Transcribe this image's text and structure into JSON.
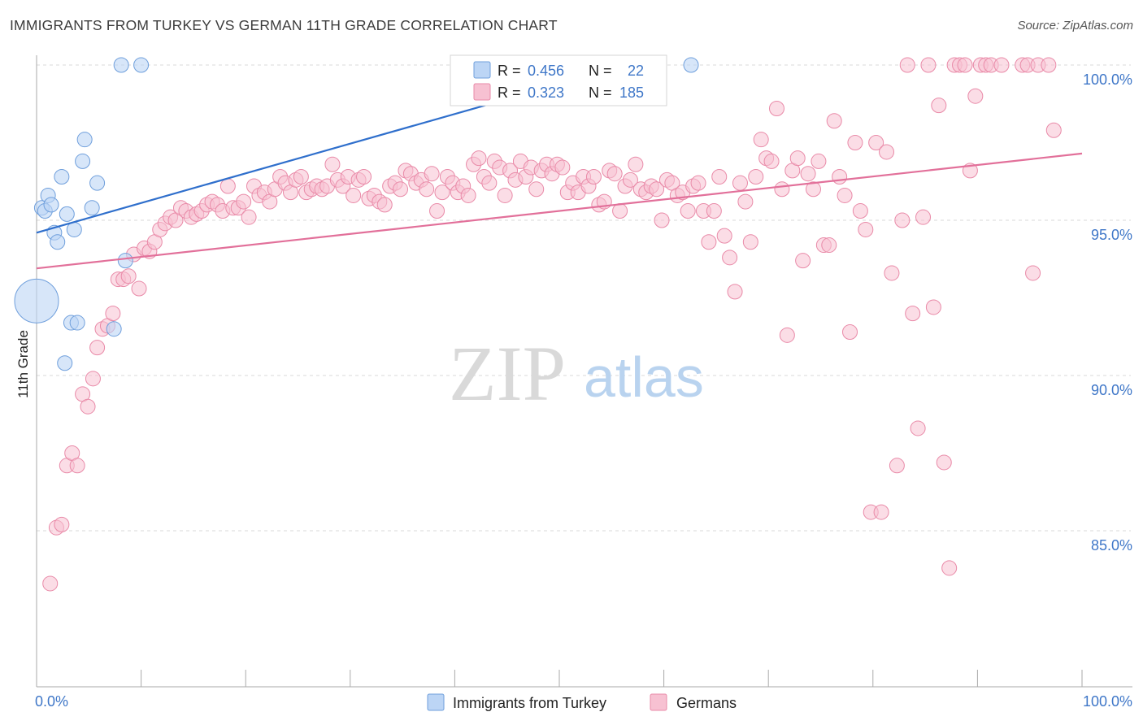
{
  "title": "IMMIGRANTS FROM TURKEY VS GERMAN 11TH GRADE CORRELATION CHART",
  "source": "Source: ZipAtlas.com",
  "watermark": {
    "part1": "ZIP",
    "part2": "atlas"
  },
  "colors": {
    "blue_fill": "#bcd5f5",
    "blue_stroke": "#6f9fdc",
    "blue_line": "#2f6fcc",
    "pink_fill": "#f7c1d2",
    "pink_stroke": "#e98aa8",
    "pink_line": "#e2709a",
    "tick_text": "#3f77c8",
    "grid": "#d8d8d8"
  },
  "stats": [
    {
      "r_label": "R =",
      "r_value": "0.456",
      "n_label": "N =",
      "n_value": "22"
    },
    {
      "r_label": "R =",
      "r_value": "0.323",
      "n_label": "N =",
      "n_value": "185"
    }
  ],
  "chart_data": {
    "type": "scatter",
    "title": "IMMIGRANTS FROM TURKEY VS GERMAN 11TH GRADE CORRELATION CHART",
    "xlabel": "",
    "ylabel": "11th Grade",
    "xlim": [
      0,
      100
    ],
    "ylim": [
      80.5,
      100.8
    ],
    "x_tick_labels": [
      {
        "value": 0,
        "label": "0.0%"
      },
      {
        "value": 100,
        "label": "100.0%"
      }
    ],
    "y_tick_labels": [
      {
        "value": 100,
        "label": "100.0%"
      },
      {
        "value": 95,
        "label": "95.0%"
      },
      {
        "value": 90,
        "label": "90.0%"
      },
      {
        "value": 85,
        "label": "85.0%"
      }
    ],
    "grid": true,
    "legend_position": "bottom",
    "series": [
      {
        "name": "Immigrants from Turkey",
        "color": "blue",
        "trend": {
          "x": [
            0,
            56.5
          ],
          "y": [
            94.6,
            100.0
          ]
        },
        "points": [
          [
            0.0,
            92.4,
            3
          ],
          [
            0.5,
            95.4,
            1
          ],
          [
            0.8,
            95.3,
            1
          ],
          [
            1.1,
            95.8,
            1
          ],
          [
            1.4,
            95.5,
            1
          ],
          [
            1.7,
            94.6,
            1
          ],
          [
            2.0,
            94.3,
            1
          ],
          [
            2.4,
            96.4,
            1
          ],
          [
            2.7,
            90.4,
            1
          ],
          [
            2.9,
            95.2,
            1
          ],
          [
            3.3,
            91.7,
            1
          ],
          [
            3.6,
            94.7,
            1
          ],
          [
            3.9,
            91.7,
            1
          ],
          [
            4.4,
            96.9,
            1
          ],
          [
            4.6,
            97.6,
            1
          ],
          [
            5.3,
            95.4,
            1
          ],
          [
            5.8,
            96.2,
            1
          ],
          [
            7.4,
            91.5,
            1
          ],
          [
            8.1,
            100.0,
            1
          ],
          [
            8.5,
            93.7,
            1
          ],
          [
            10.0,
            100.0,
            1
          ],
          [
            62.6,
            100.0,
            1
          ]
        ]
      },
      {
        "name": "Germans",
        "color": "pink",
        "trend": {
          "x": [
            0,
            100
          ],
          "y": [
            93.45,
            97.15
          ]
        },
        "points": [
          [
            1.3,
            83.3
          ],
          [
            1.9,
            85.1
          ],
          [
            2.4,
            85.2
          ],
          [
            2.9,
            87.1
          ],
          [
            3.4,
            87.5
          ],
          [
            3.9,
            87.1
          ],
          [
            4.4,
            89.4
          ],
          [
            4.9,
            89.0
          ],
          [
            5.4,
            89.9
          ],
          [
            5.8,
            90.9
          ],
          [
            6.3,
            91.5
          ],
          [
            6.8,
            91.6
          ],
          [
            7.3,
            92.0
          ],
          [
            7.8,
            93.1
          ],
          [
            8.3,
            93.1
          ],
          [
            8.8,
            93.2
          ],
          [
            9.3,
            93.9
          ],
          [
            9.8,
            92.8
          ],
          [
            10.3,
            94.1
          ],
          [
            10.8,
            94.0
          ],
          [
            11.3,
            94.3
          ],
          [
            11.8,
            94.7
          ],
          [
            12.3,
            94.9
          ],
          [
            12.8,
            95.1
          ],
          [
            13.3,
            95.0
          ],
          [
            13.8,
            95.4
          ],
          [
            14.3,
            95.3
          ],
          [
            14.8,
            95.1
          ],
          [
            15.3,
            95.2
          ],
          [
            15.8,
            95.3
          ],
          [
            16.3,
            95.5
          ],
          [
            16.8,
            95.6
          ],
          [
            17.3,
            95.5
          ],
          [
            17.8,
            95.3
          ],
          [
            18.3,
            96.1
          ],
          [
            18.8,
            95.4
          ],
          [
            19.3,
            95.4
          ],
          [
            19.8,
            95.6
          ],
          [
            20.3,
            95.1
          ],
          [
            20.8,
            96.1
          ],
          [
            21.3,
            95.8
          ],
          [
            21.8,
            95.9
          ],
          [
            22.3,
            95.6
          ],
          [
            22.8,
            96.0
          ],
          [
            23.3,
            96.4
          ],
          [
            23.8,
            96.2
          ],
          [
            24.3,
            95.9
          ],
          [
            24.8,
            96.3
          ],
          [
            25.3,
            96.4
          ],
          [
            25.8,
            95.9
          ],
          [
            26.3,
            96.0
          ],
          [
            26.8,
            96.1
          ],
          [
            27.3,
            96.0
          ],
          [
            27.8,
            96.1
          ],
          [
            28.3,
            96.8
          ],
          [
            28.8,
            96.3
          ],
          [
            29.3,
            96.1
          ],
          [
            29.8,
            96.4
          ],
          [
            30.3,
            95.8
          ],
          [
            30.8,
            96.3
          ],
          [
            31.3,
            96.4
          ],
          [
            31.8,
            95.7
          ],
          [
            32.3,
            95.8
          ],
          [
            32.8,
            95.6
          ],
          [
            33.3,
            95.5
          ],
          [
            33.8,
            96.1
          ],
          [
            34.3,
            96.2
          ],
          [
            34.8,
            96.0
          ],
          [
            35.3,
            96.6
          ],
          [
            35.8,
            96.5
          ],
          [
            36.3,
            96.2
          ],
          [
            36.8,
            96.3
          ],
          [
            37.3,
            96.0
          ],
          [
            37.8,
            96.5
          ],
          [
            38.3,
            95.3
          ],
          [
            38.8,
            95.9
          ],
          [
            39.3,
            96.4
          ],
          [
            39.8,
            96.2
          ],
          [
            40.3,
            95.9
          ],
          [
            40.8,
            96.1
          ],
          [
            41.3,
            95.8
          ],
          [
            41.8,
            96.8
          ],
          [
            42.3,
            97.0
          ],
          [
            42.8,
            96.4
          ],
          [
            43.3,
            96.2
          ],
          [
            43.8,
            96.9
          ],
          [
            44.3,
            96.7
          ],
          [
            44.8,
            95.8
          ],
          [
            45.3,
            96.6
          ],
          [
            45.8,
            96.3
          ],
          [
            46.3,
            96.9
          ],
          [
            46.8,
            96.4
          ],
          [
            47.3,
            96.7
          ],
          [
            47.8,
            96.0
          ],
          [
            48.3,
            96.6
          ],
          [
            48.8,
            96.8
          ],
          [
            49.3,
            96.5
          ],
          [
            49.8,
            96.8
          ],
          [
            50.3,
            96.7
          ],
          [
            50.8,
            95.9
          ],
          [
            51.3,
            96.2
          ],
          [
            51.8,
            95.9
          ],
          [
            52.3,
            96.4
          ],
          [
            52.8,
            96.1
          ],
          [
            53.3,
            96.4
          ],
          [
            53.8,
            95.5
          ],
          [
            54.3,
            95.6
          ],
          [
            54.8,
            96.6
          ],
          [
            55.3,
            96.5
          ],
          [
            55.8,
            95.3
          ],
          [
            56.3,
            96.1
          ],
          [
            56.8,
            96.3
          ],
          [
            57.3,
            96.8
          ],
          [
            57.8,
            96.0
          ],
          [
            58.3,
            95.9
          ],
          [
            58.8,
            96.1
          ],
          [
            59.3,
            96.0
          ],
          [
            59.8,
            95.0
          ],
          [
            60.3,
            96.3
          ],
          [
            60.8,
            96.2
          ],
          [
            61.3,
            95.8
          ],
          [
            61.8,
            95.9
          ],
          [
            62.3,
            95.3
          ],
          [
            62.8,
            96.1
          ],
          [
            63.3,
            96.2
          ],
          [
            63.8,
            95.3
          ],
          [
            64.3,
            94.3
          ],
          [
            64.8,
            95.3
          ],
          [
            65.3,
            96.4
          ],
          [
            65.8,
            94.5
          ],
          [
            66.3,
            93.8
          ],
          [
            66.8,
            92.7
          ],
          [
            67.3,
            96.2
          ],
          [
            67.8,
            95.6
          ],
          [
            68.3,
            94.3
          ],
          [
            68.8,
            96.4
          ],
          [
            69.3,
            97.6
          ],
          [
            69.8,
            97.0
          ],
          [
            70.3,
            96.9
          ],
          [
            70.8,
            98.6
          ],
          [
            71.3,
            96.0
          ],
          [
            71.8,
            91.3
          ],
          [
            72.3,
            96.6
          ],
          [
            72.8,
            97.0
          ],
          [
            73.3,
            93.7
          ],
          [
            73.8,
            96.5
          ],
          [
            74.3,
            96.0
          ],
          [
            74.8,
            96.9
          ],
          [
            75.3,
            94.2
          ],
          [
            75.8,
            94.2
          ],
          [
            76.3,
            98.2
          ],
          [
            76.8,
            96.4
          ],
          [
            77.3,
            95.8
          ],
          [
            77.8,
            91.4
          ],
          [
            78.3,
            97.5
          ],
          [
            78.8,
            95.3
          ],
          [
            79.3,
            94.7
          ],
          [
            79.8,
            85.6
          ],
          [
            80.3,
            97.5
          ],
          [
            80.8,
            85.6
          ],
          [
            81.3,
            97.2
          ],
          [
            81.8,
            93.3
          ],
          [
            82.3,
            87.1
          ],
          [
            82.8,
            95.0
          ],
          [
            83.3,
            100.0
          ],
          [
            83.8,
            92.0
          ],
          [
            84.3,
            88.3
          ],
          [
            84.8,
            95.1
          ],
          [
            85.3,
            100.0
          ],
          [
            85.8,
            92.2
          ],
          [
            86.3,
            98.7
          ],
          [
            86.8,
            87.2
          ],
          [
            87.3,
            83.8
          ],
          [
            87.8,
            100.0
          ],
          [
            88.3,
            100.0
          ],
          [
            88.8,
            100.0
          ],
          [
            89.3,
            96.6
          ],
          [
            89.8,
            99.0
          ],
          [
            90.3,
            100.0
          ],
          [
            90.8,
            100.0
          ],
          [
            91.3,
            100.0
          ],
          [
            92.3,
            100.0
          ],
          [
            94.3,
            100.0
          ],
          [
            94.8,
            100.0
          ],
          [
            95.3,
            93.3
          ],
          [
            95.8,
            100.0
          ],
          [
            96.8,
            100.0
          ],
          [
            97.3,
            97.9
          ]
        ]
      }
    ]
  }
}
